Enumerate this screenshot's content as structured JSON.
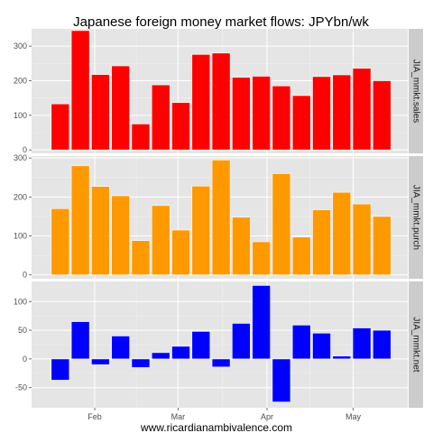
{
  "chart_data": {
    "type": "bar",
    "title": "Japanese foreign money market flows: JPYbn/wk",
    "xlabel": "www.ricardianambivalence.com",
    "x_ticks": [
      "Feb",
      "Mar",
      "Apr",
      "May"
    ],
    "x_tick_positions": [
      "2012-02-01",
      "2012-03-01",
      "2012-04-01",
      "2012-05-01"
    ],
    "x_range": [
      "2012-01-10",
      "2012-05-20"
    ],
    "dates": [
      "2012-01-20",
      "2012-01-27",
      "2012-02-03",
      "2012-02-10",
      "2012-02-17",
      "2012-02-24",
      "2012-03-02",
      "2012-03-09",
      "2012-03-16",
      "2012-03-23",
      "2012-03-30",
      "2012-04-06",
      "2012-04-13",
      "2012-04-20",
      "2012-04-27",
      "2012-05-04",
      "2012-05-11"
    ],
    "grid": true,
    "panels": [
      {
        "name": "JIA_mmkt.sales",
        "color": "#ff0000",
        "ylim": [
          -10,
          350
        ],
        "yticks": [
          0,
          100,
          200,
          300
        ],
        "values": [
          133,
          345,
          218,
          243,
          75,
          188,
          137,
          276,
          280,
          210,
          213,
          185,
          157,
          212,
          217,
          236,
          200
        ]
      },
      {
        "name": "JIA_mmkt.purch",
        "color": "#ff9900",
        "ylim": [
          -10,
          305
        ],
        "yticks": [
          0,
          100,
          200,
          300
        ],
        "values": [
          170,
          280,
          227,
          203,
          88,
          178,
          115,
          228,
          295,
          148,
          85,
          260,
          97,
          167,
          212,
          182,
          150
        ]
      },
      {
        "name": "JIA_mmkt.net",
        "color": "#0000ff",
        "ylim": [
          -85,
          135
        ],
        "yticks": [
          -50,
          0,
          50,
          100
        ],
        "values": [
          -37,
          65,
          -10,
          40,
          -15,
          11,
          22,
          48,
          -14,
          62,
          128,
          -75,
          59,
          45,
          5,
          54,
          50
        ]
      }
    ]
  }
}
